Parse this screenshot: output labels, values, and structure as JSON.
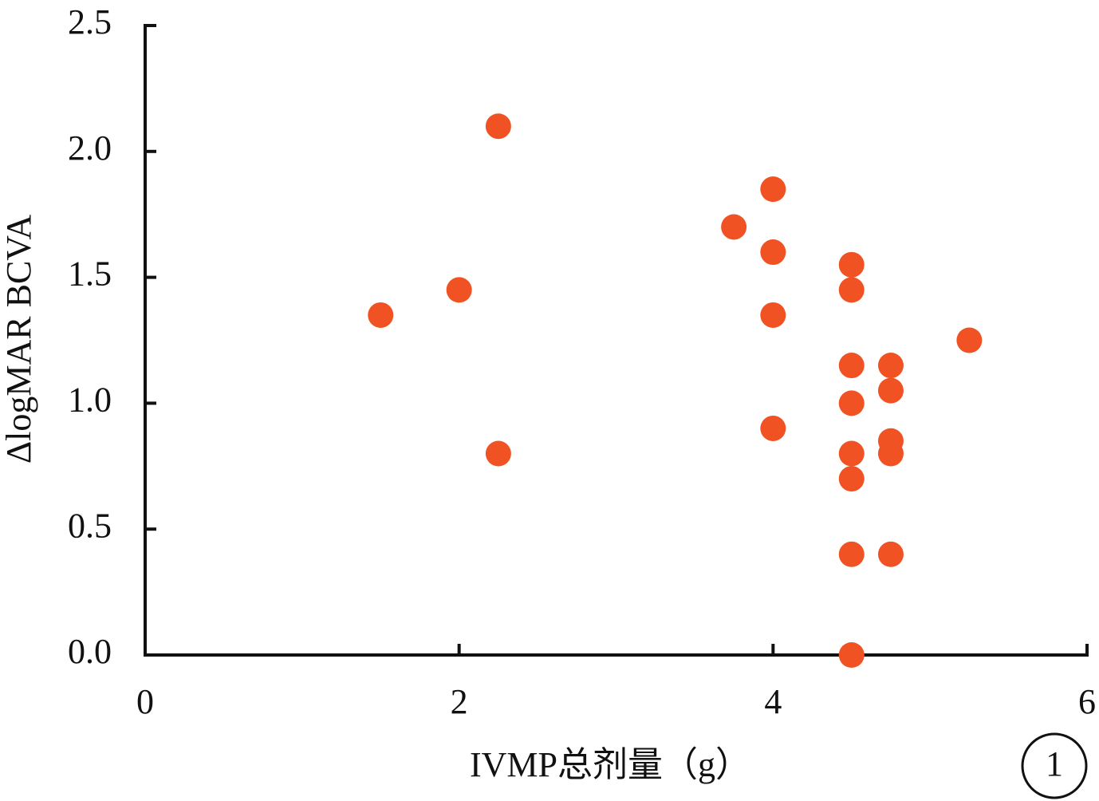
{
  "chart_data": {
    "type": "scatter",
    "xlabel": "IVMP总剂量（g）",
    "ylabel": "ΔlogMAR BCVA",
    "annotation": "1",
    "color": "#f05223",
    "x": [
      1.5,
      2.0,
      2.25,
      2.25,
      3.75,
      4.0,
      4.0,
      4.0,
      4.0,
      4.5,
      4.5,
      4.5,
      4.5,
      4.5,
      4.5,
      4.5,
      4.5,
      4.75,
      4.75,
      4.75,
      4.75,
      4.75,
      5.25
    ],
    "values": [
      1.35,
      1.45,
      2.1,
      0.8,
      1.7,
      1.85,
      1.6,
      1.35,
      0.9,
      1.55,
      1.45,
      1.15,
      1.0,
      0.8,
      0.7,
      0.4,
      0.0,
      1.15,
      1.05,
      0.85,
      0.8,
      0.4,
      1.25
    ],
    "xlim": [
      0,
      6
    ],
    "xticks": [
      0,
      2,
      4,
      6
    ],
    "ylim": [
      0,
      2.5
    ],
    "yticks": [
      {
        "value": 0,
        "label": "0.0"
      },
      0.5,
      {
        "value": 1,
        "label": "1.0"
      },
      1.5,
      {
        "value": 2,
        "label": "2.0"
      },
      2.5
    ]
  }
}
